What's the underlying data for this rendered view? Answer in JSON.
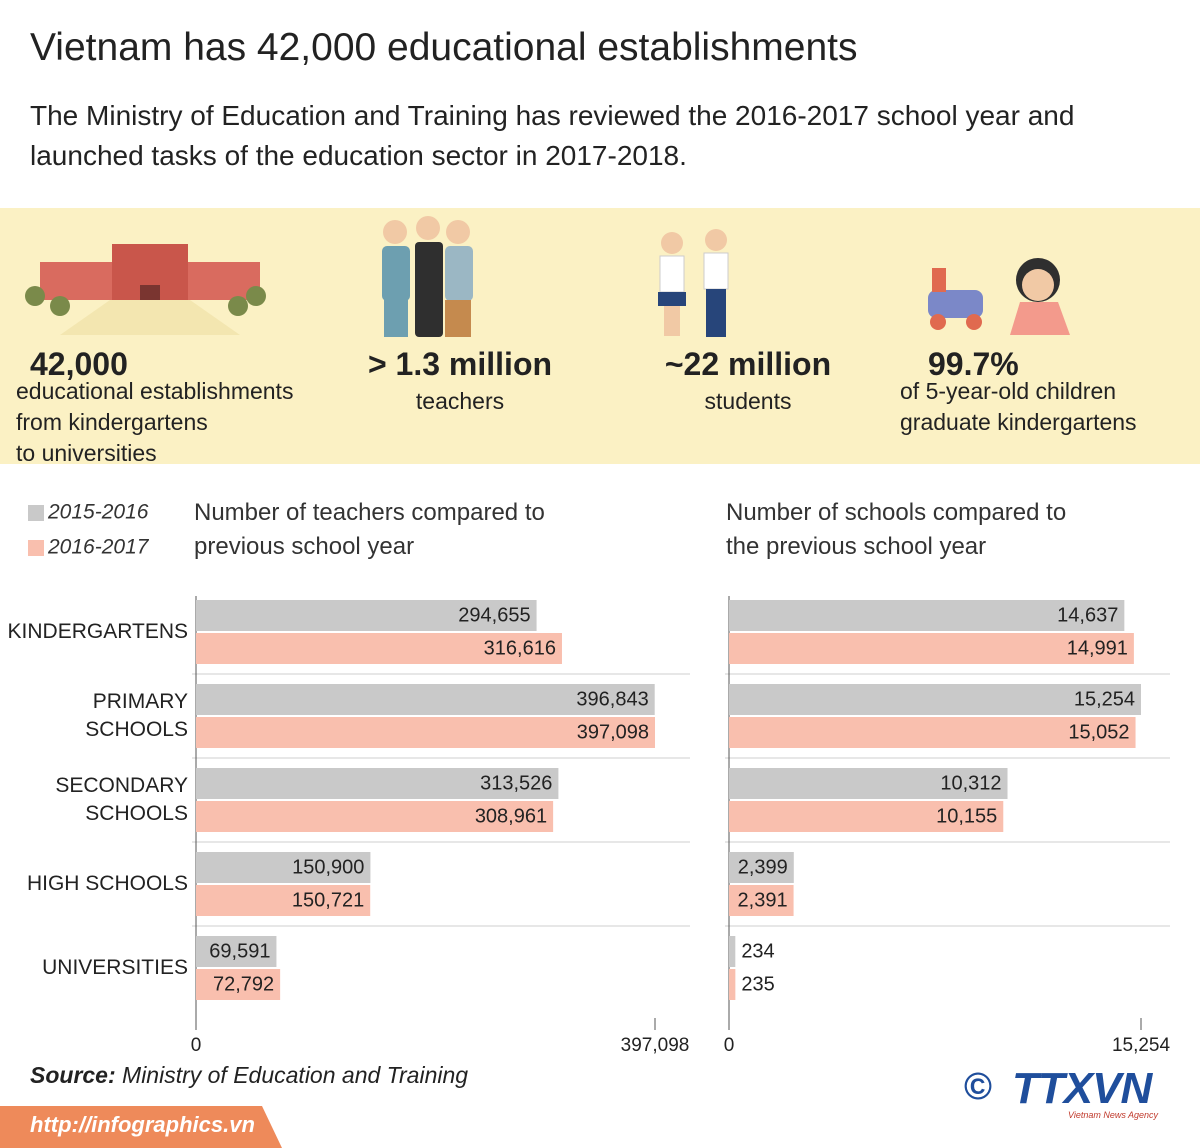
{
  "header": {
    "title": "Vietnam has 42,000 educational establishments",
    "subtitle": "The Ministry of Education and Training has reviewed the 2016-2017 school year and launched tasks of the education sector in 2017-2018."
  },
  "stats": [
    {
      "value": "42,000",
      "label_lines": [
        "educational establishments",
        "from kindergartens",
        "to universities"
      ]
    },
    {
      "value": "> 1.3 million",
      "label_lines": [
        "teachers"
      ]
    },
    {
      "value": "~22 million",
      "label_lines": [
        "students"
      ]
    },
    {
      "value": "99.7%",
      "label_lines": [
        "of 5-year-old children",
        "graduate kindergartens"
      ]
    }
  ],
  "chart_data": [
    {
      "type": "bar",
      "orientation": "horizontal",
      "title": "Number of teachers compared to previous school year",
      "categories": [
        "KINDERGARTENS",
        "PRIMARY SCHOOLS",
        "SECONDARY SCHOOLS",
        "HIGH SCHOOLS",
        "UNIVERSITIES"
      ],
      "series": [
        {
          "name": "2015-2016",
          "color": "#c9c9c9",
          "values": [
            294655,
            396843,
            313526,
            150900,
            69591
          ],
          "value_labels": [
            "294,655",
            "396,843",
            "313,526",
            "150,900",
            "69,591"
          ]
        },
        {
          "name": "2016-2017",
          "color": "#f9bfae",
          "values": [
            316616,
            397098,
            308961,
            150721,
            72792
          ],
          "value_labels": [
            "316,616",
            "397,098",
            "308,961",
            "150,721",
            "72,792"
          ]
        }
      ],
      "xlim": [
        0,
        397098
      ],
      "xticks": [
        0,
        {
          "value": 397098,
          "label": "397,098"
        }
      ]
    },
    {
      "type": "bar",
      "orientation": "horizontal",
      "title": "Number of schools compared to the previous school year",
      "series": [
        {
          "color": "#c9c9c9",
          "values": [
            14637,
            15254,
            10312,
            2399,
            234
          ],
          "value_labels": [
            "14,637",
            "15,254",
            "10,312",
            "2,399",
            "234"
          ]
        },
        {
          "color": "#f9bfae",
          "values": [
            14991,
            15052,
            10155,
            2391,
            235
          ],
          "value_labels": [
            "14,991",
            "15,052",
            "10,155",
            "2,391",
            "235"
          ]
        }
      ],
      "xlim": [
        0,
        15254
      ],
      "xticks": [
        0,
        {
          "value": 15254,
          "label": "15,254"
        }
      ]
    }
  ],
  "source": {
    "label": "Source:",
    "text": "Ministry of Education and Training"
  },
  "footer": {
    "url": "http://infographics.vn",
    "copyright": "©",
    "logo": "TTXVN",
    "logo_sub": "Vietnam News Agency"
  }
}
